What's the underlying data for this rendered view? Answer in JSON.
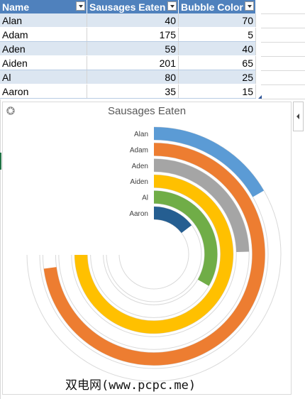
{
  "table": {
    "headers": [
      "Name",
      "Sausages Eaten",
      "Bubble Color"
    ],
    "rows": [
      {
        "name": "Alan",
        "sausages": "40",
        "bubble": "70"
      },
      {
        "name": "Adam",
        "sausages": "175",
        "bubble": "5"
      },
      {
        "name": "Aden",
        "sausages": "59",
        "bubble": "40"
      },
      {
        "name": "Aiden",
        "sausages": "201",
        "bubble": "65"
      },
      {
        "name": "Al",
        "sausages": "80",
        "bubble": "25"
      },
      {
        "name": "Aaron",
        "sausages": "35",
        "bubble": "15"
      }
    ]
  },
  "chart_data": {
    "type": "radial-bar",
    "title": "Sausages Eaten",
    "categories": [
      "Alan",
      "Adam",
      "Aden",
      "Aiden",
      "Al",
      "Aaron"
    ],
    "values": [
      40,
      175,
      59,
      201,
      80,
      35
    ],
    "max": 240,
    "colors": [
      "#5b9bd5",
      "#ed7d31",
      "#a5a5a5",
      "#ffc000",
      "#70ad47",
      "#255e91"
    ],
    "track_color": "#d9d9d9"
  },
  "watermark": "双电网(www.pcpc.me)",
  "icons": {
    "gear": "gear-icon",
    "panel": "collapse-panel-icon"
  }
}
